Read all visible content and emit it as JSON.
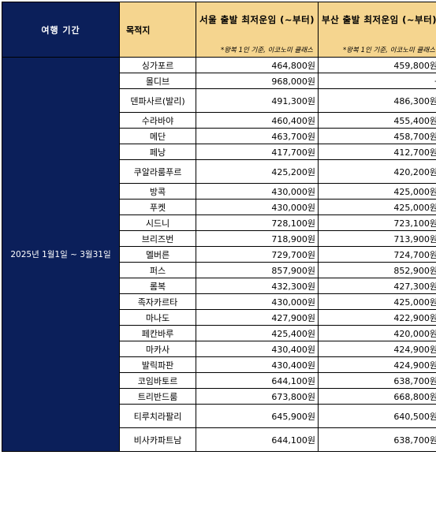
{
  "header": {
    "period": "여행 기간",
    "destination": "목적지",
    "seoul_title": "서울 출발 최저운임 (~부터)",
    "busan_title": "부산 출발 최저운임 (~부터)",
    "note": "*왕복 1인 기준, 이코노미 클래스"
  },
  "period_value": "2025년 1월1일 ~ 3월31일",
  "rows": [
    {
      "dest": "싱가포르",
      "seoul": "464,800원",
      "busan": "459,800원"
    },
    {
      "dest": "몰디브",
      "seoul": "968,000원",
      "busan": "-"
    },
    {
      "dest": "덴파사르(발리)",
      "seoul": "491,300원",
      "busan": "486,300원"
    },
    {
      "dest": "수라바야",
      "seoul": "460,400원",
      "busan": "455,400원"
    },
    {
      "dest": "메단",
      "seoul": "463,700원",
      "busan": "458,700원"
    },
    {
      "dest": "페낭",
      "seoul": "417,700원",
      "busan": "412,700원"
    },
    {
      "dest": "쿠알라룸푸르",
      "seoul": "425,200원",
      "busan": "420,200원"
    },
    {
      "dest": "방콕",
      "seoul": "430,000원",
      "busan": "425,000원"
    },
    {
      "dest": "푸켓",
      "seoul": "430,000원",
      "busan": "425,000원"
    },
    {
      "dest": "시드니",
      "seoul": "728,100원",
      "busan": "723,100원"
    },
    {
      "dest": "브리즈번",
      "seoul": "718,900원",
      "busan": "713,900원"
    },
    {
      "dest": "멜버른",
      "seoul": "729,700원",
      "busan": "724,700원"
    },
    {
      "dest": "퍼스",
      "seoul": "857,900원",
      "busan": "852,900원"
    },
    {
      "dest": "롬복",
      "seoul": "432,300원",
      "busan": "427,300원"
    },
    {
      "dest": "족자카르타",
      "seoul": "430,000원",
      "busan": "425,000원"
    },
    {
      "dest": "마나도",
      "seoul": "427,900원",
      "busan": "422,900원"
    },
    {
      "dest": "페칸바루",
      "seoul": "425,400원",
      "busan": "420,000원"
    },
    {
      "dest": "마카사",
      "seoul": "430,400원",
      "busan": "424,900원"
    },
    {
      "dest": "발릭파판",
      "seoul": "430,400원",
      "busan": "424,900원"
    },
    {
      "dest": "코임바토르",
      "seoul": "644,100원",
      "busan": "638,700원"
    },
    {
      "dest": "트리반드룸",
      "seoul": "673,800원",
      "busan": "668,800원"
    },
    {
      "dest": "티루치라팔리",
      "seoul": "645,900원",
      "busan": "640,500원"
    },
    {
      "dest": "비사카파트남",
      "seoul": "644,100원",
      "busan": "638,700원"
    }
  ]
}
